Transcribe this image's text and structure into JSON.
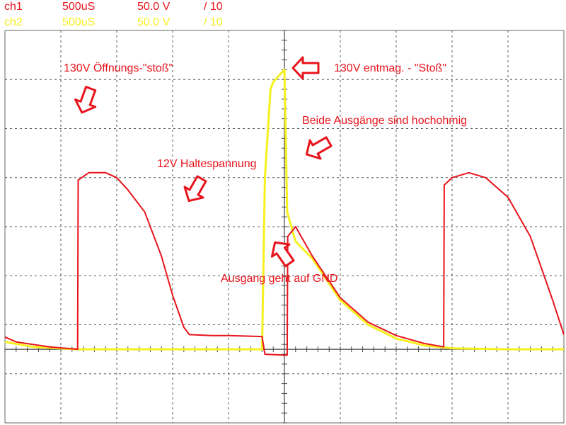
{
  "header": {
    "ch1": {
      "name": "ch1",
      "timebase": "500uS",
      "volts": "50.0 V",
      "probe": "/ 10",
      "color": "#e8141c"
    },
    "ch2": {
      "name": "ch2",
      "timebase": "500uS",
      "volts": "50.0 V",
      "probe": "/ 10",
      "color": "#f5f01e"
    }
  },
  "annotations": {
    "open_pulse": "130V Öffnungs-\"stoß\"",
    "demag_pulse": "130V entmag. - \"Stoß\"",
    "high_impedance": "Beide Ausgänge sind hochohmig",
    "hold_voltage": "12V Haltespannung",
    "output_gnd": "Ausgang geht auf GND"
  },
  "chart_data": {
    "type": "line",
    "grid": true,
    "x_divisions": 10,
    "y_divisions": 8,
    "xlim": [
      0,
      10
    ],
    "ylim": [
      -1.5,
      6.5
    ],
    "x_unit": "div (500uS/div)",
    "y_unit": "div (50.0 V/div)",
    "series": [
      {
        "name": "ch1",
        "color": "#e8141c",
        "x": [
          0,
          0.2,
          0.8,
          1.3,
          1.31,
          1.5,
          1.8,
          2.0,
          2.2,
          2.5,
          2.8,
          3.0,
          3.2,
          3.3,
          3.7,
          4.0,
          4.6,
          4.65,
          5.0,
          5.05,
          5.06,
          5.2,
          5.5,
          6.0,
          6.5,
          7.0,
          7.5,
          7.85,
          7.86,
          8.0,
          8.3,
          8.6,
          9.0,
          9.4,
          9.8,
          10.0
        ],
        "y": [
          0.25,
          0.15,
          0.05,
          0.0,
          3.45,
          3.6,
          3.6,
          3.5,
          3.25,
          2.8,
          1.9,
          1.1,
          0.45,
          0.3,
          0.28,
          0.28,
          0.26,
          -0.1,
          -0.12,
          -0.12,
          2.3,
          2.5,
          1.9,
          1.05,
          0.55,
          0.28,
          0.12,
          0.05,
          3.35,
          3.5,
          3.6,
          3.5,
          3.1,
          2.3,
          1.0,
          0.3
        ]
      },
      {
        "name": "ch2",
        "color": "#f5f01e",
        "x": [
          0,
          0.5,
          1.3,
          2.0,
          3.0,
          4.0,
          4.6,
          4.65,
          4.75,
          4.8,
          5.0,
          5.05,
          5.2,
          5.5,
          6.0,
          6.5,
          7.0,
          7.5,
          8.0,
          9.0,
          10.0
        ],
        "y": [
          0.15,
          0.05,
          0.0,
          0.0,
          0.0,
          0.0,
          0.0,
          3.5,
          5.3,
          5.45,
          5.7,
          2.8,
          2.2,
          1.85,
          1.0,
          0.5,
          0.22,
          0.08,
          0.02,
          0.0,
          0.0
        ]
      }
    ]
  }
}
